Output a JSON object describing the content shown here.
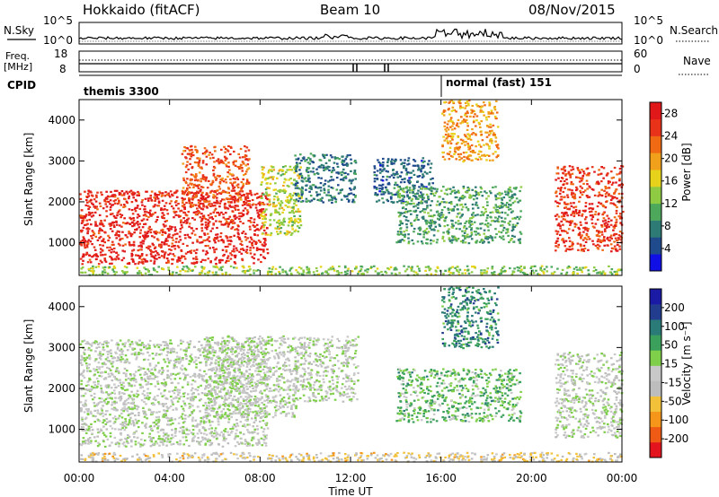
{
  "header": {
    "station": "Hokkaido (fitACF)",
    "beam": "Beam 10",
    "date": "08/Nov/2015"
  },
  "strip": {
    "nsky_label": "N.Sky",
    "nsearch_label": "N.Search",
    "freq_label": "Freq.",
    "freq_unit": "[MHz]",
    "nave_label": "Nave",
    "cpid_label": "CPID",
    "noise_ticks": [
      "10^5",
      "10^0"
    ],
    "freq_ticks": [
      "18",
      "8"
    ],
    "nave_ticks": [
      "60",
      "0"
    ],
    "cpid_modes": [
      {
        "name": "themis 3300",
        "start_hour": 0,
        "end_hour": 16.1
      },
      {
        "name": "normal (fast) 151",
        "start_hour": 16.1,
        "end_hour": 24
      }
    ]
  },
  "colors": {
    "power": [
      "#1010e6",
      "#1f4a8c",
      "#2e7a74",
      "#4ea85c",
      "#8fcb42",
      "#e6d21a",
      "#f0a01a",
      "#f06a14",
      "#e8321a",
      "#e0181a"
    ],
    "velocity": [
      "#e3141e",
      "#ef5a14",
      "#f5961a",
      "#f3c03a",
      "#bdbdbd",
      "#c8c8c8",
      "#7fcf4a",
      "#3aa05c",
      "#2a7a78",
      "#223c8e",
      "#1b1aa5"
    ]
  },
  "chart_data": [
    {
      "type": "heatmap",
      "panel": "power",
      "xlabel": "Time UT",
      "ylabel": "Slant Range [km]",
      "colorbar_label": "Power [dB]",
      "xlim": [
        0,
        24
      ],
      "ylim": [
        200,
        4500
      ],
      "x_ticks": [
        "00:00",
        "04:00",
        "08:00",
        "12:00",
        "16:00",
        "20:00",
        "00:00"
      ],
      "y_ticks": [
        1000,
        2000,
        3000,
        4000
      ],
      "colorbar_ticks": [
        4,
        8,
        12,
        16,
        20,
        24,
        28
      ],
      "colorbar_range": [
        0,
        30
      ],
      "regions": [
        {
          "t": [
            0,
            8.3
          ],
          "range": [
            500,
            2300
          ],
          "level": 27
        },
        {
          "t": [
            4.5,
            7.5
          ],
          "range": [
            1900,
            3400
          ],
          "level": 24
        },
        {
          "t": [
            8.0,
            9.8
          ],
          "range": [
            1200,
            2900
          ],
          "level": 15
        },
        {
          "t": [
            9.5,
            12.2
          ],
          "range": [
            2000,
            3200
          ],
          "level": 7
        },
        {
          "t": [
            13.0,
            15.6
          ],
          "range": [
            2000,
            3100
          ],
          "level": 6
        },
        {
          "t": [
            14.0,
            19.5
          ],
          "range": [
            1000,
            2400
          ],
          "level": 10
        },
        {
          "t": [
            16.0,
            18.5
          ],
          "range": [
            3000,
            4500
          ],
          "level": 20
        },
        {
          "t": [
            21.0,
            24.0
          ],
          "range": [
            800,
            2900
          ],
          "level": 26
        },
        {
          "t": [
            0,
            24.0
          ],
          "range": [
            230,
            450
          ],
          "level": 13
        }
      ]
    },
    {
      "type": "heatmap",
      "panel": "velocity",
      "xlabel": "Time UT",
      "ylabel": "Slant Range [km]",
      "colorbar_label": "Velocity [m s⁻¹]",
      "xlim": [
        0,
        24
      ],
      "ylim": [
        200,
        4500
      ],
      "x_ticks": [
        "00:00",
        "04:00",
        "08:00",
        "12:00",
        "16:00",
        "20:00",
        "00:00"
      ],
      "y_ticks": [
        1000,
        2000,
        3000,
        4000
      ],
      "colorbar_ticks": [
        -200,
        -100,
        -50,
        -15,
        15,
        50,
        100,
        200
      ],
      "colorbar_range": [
        -250,
        250
      ],
      "regions": [
        {
          "t": [
            0,
            8.3
          ],
          "range": [
            600,
            3200
          ],
          "level": 0
        },
        {
          "t": [
            5.5,
            9.6
          ],
          "range": [
            1300,
            3300
          ],
          "level": 0
        },
        {
          "t": [
            9.5,
            12.3
          ],
          "range": [
            1700,
            3300
          ],
          "level": 5
        },
        {
          "t": [
            14.0,
            19.5
          ],
          "range": [
            1200,
            2500
          ],
          "level": 60
        },
        {
          "t": [
            16.0,
            18.5
          ],
          "range": [
            3000,
            4500
          ],
          "level": 120
        },
        {
          "t": [
            21.0,
            24.0
          ],
          "range": [
            800,
            2900
          ],
          "level": 0
        },
        {
          "t": [
            0,
            24.0
          ],
          "range": [
            230,
            450
          ],
          "level": -60
        }
      ]
    }
  ]
}
